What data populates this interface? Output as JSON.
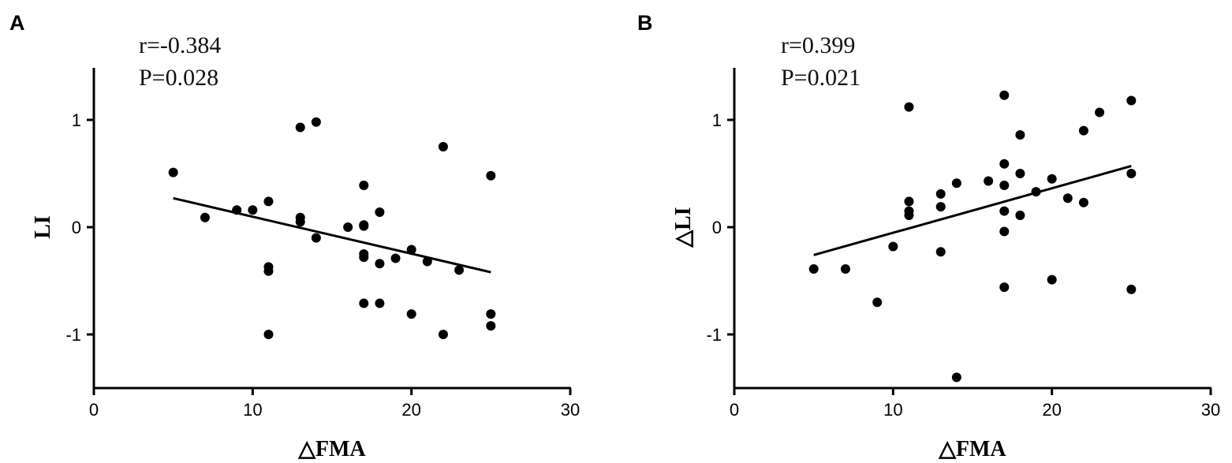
{
  "chart_data": [
    {
      "panel": "A",
      "type": "scatter",
      "annotation": [
        "r=-0.384",
        "P=0.028"
      ],
      "xlabel": "△FMA",
      "ylabel": "LI",
      "xlim": [
        0,
        30
      ],
      "ylim": [
        -1.5,
        1.5
      ],
      "xticks": [
        0,
        10,
        20,
        30
      ],
      "yticks": [
        -1,
        0,
        1
      ],
      "fit_line": {
        "x": [
          5,
          25
        ],
        "y": [
          0.27,
          -0.42
        ]
      },
      "points": [
        [
          5,
          0.51
        ],
        [
          7,
          0.09
        ],
        [
          9,
          0.16
        ],
        [
          10,
          0.16
        ],
        [
          11,
          0.24
        ],
        [
          11,
          -0.37
        ],
        [
          11,
          -0.41
        ],
        [
          11,
          -1.0
        ],
        [
          13,
          0.93
        ],
        [
          13,
          0.09
        ],
        [
          13,
          0.05
        ],
        [
          14,
          0.98
        ],
        [
          14,
          -0.1
        ],
        [
          16,
          0.0
        ],
        [
          17,
          0.39
        ],
        [
          17,
          0.02
        ],
        [
          17,
          0.01
        ],
        [
          17,
          -0.25
        ],
        [
          17,
          -0.28
        ],
        [
          17,
          -0.71
        ],
        [
          18,
          0.14
        ],
        [
          18,
          -0.34
        ],
        [
          18,
          -0.71
        ],
        [
          19,
          -0.29
        ],
        [
          20,
          -0.21
        ],
        [
          20,
          -0.81
        ],
        [
          21,
          -0.32
        ],
        [
          22,
          0.75
        ],
        [
          22,
          -1.0
        ],
        [
          23,
          -0.4
        ],
        [
          25,
          0.48
        ],
        [
          25,
          -0.81
        ],
        [
          25,
          -0.92
        ]
      ]
    },
    {
      "panel": "B",
      "type": "scatter",
      "annotation": [
        "r=0.399",
        "P=0.021"
      ],
      "xlabel": "△FMA",
      "ylabel": "△LI",
      "xlim": [
        0,
        30
      ],
      "ylim": [
        -1.5,
        1.5
      ],
      "xticks": [
        0,
        10,
        20,
        30
      ],
      "yticks": [
        -1,
        0,
        1
      ],
      "fit_line": {
        "x": [
          5,
          25
        ],
        "y": [
          -0.26,
          0.57
        ]
      },
      "points": [
        [
          5,
          -0.39
        ],
        [
          7,
          -0.39
        ],
        [
          9,
          -0.7
        ],
        [
          10,
          -0.18
        ],
        [
          11,
          1.12
        ],
        [
          11,
          0.24
        ],
        [
          11,
          0.15
        ],
        [
          11,
          0.11
        ],
        [
          13,
          0.31
        ],
        [
          13,
          0.19
        ],
        [
          13,
          -0.23
        ],
        [
          14,
          0.41
        ],
        [
          14,
          -1.4
        ],
        [
          16,
          0.43
        ],
        [
          17,
          1.23
        ],
        [
          17,
          0.59
        ],
        [
          17,
          0.39
        ],
        [
          17,
          0.15
        ],
        [
          17,
          -0.04
        ],
        [
          17,
          -0.56
        ],
        [
          18,
          0.86
        ],
        [
          18,
          0.5
        ],
        [
          18,
          0.11
        ],
        [
          19,
          0.33
        ],
        [
          20,
          0.45
        ],
        [
          20,
          -0.49
        ],
        [
          21,
          0.27
        ],
        [
          22,
          0.9
        ],
        [
          22,
          0.23
        ],
        [
          23,
          1.07
        ],
        [
          25,
          1.18
        ],
        [
          25,
          0.5
        ],
        [
          25,
          -0.58
        ]
      ]
    }
  ]
}
